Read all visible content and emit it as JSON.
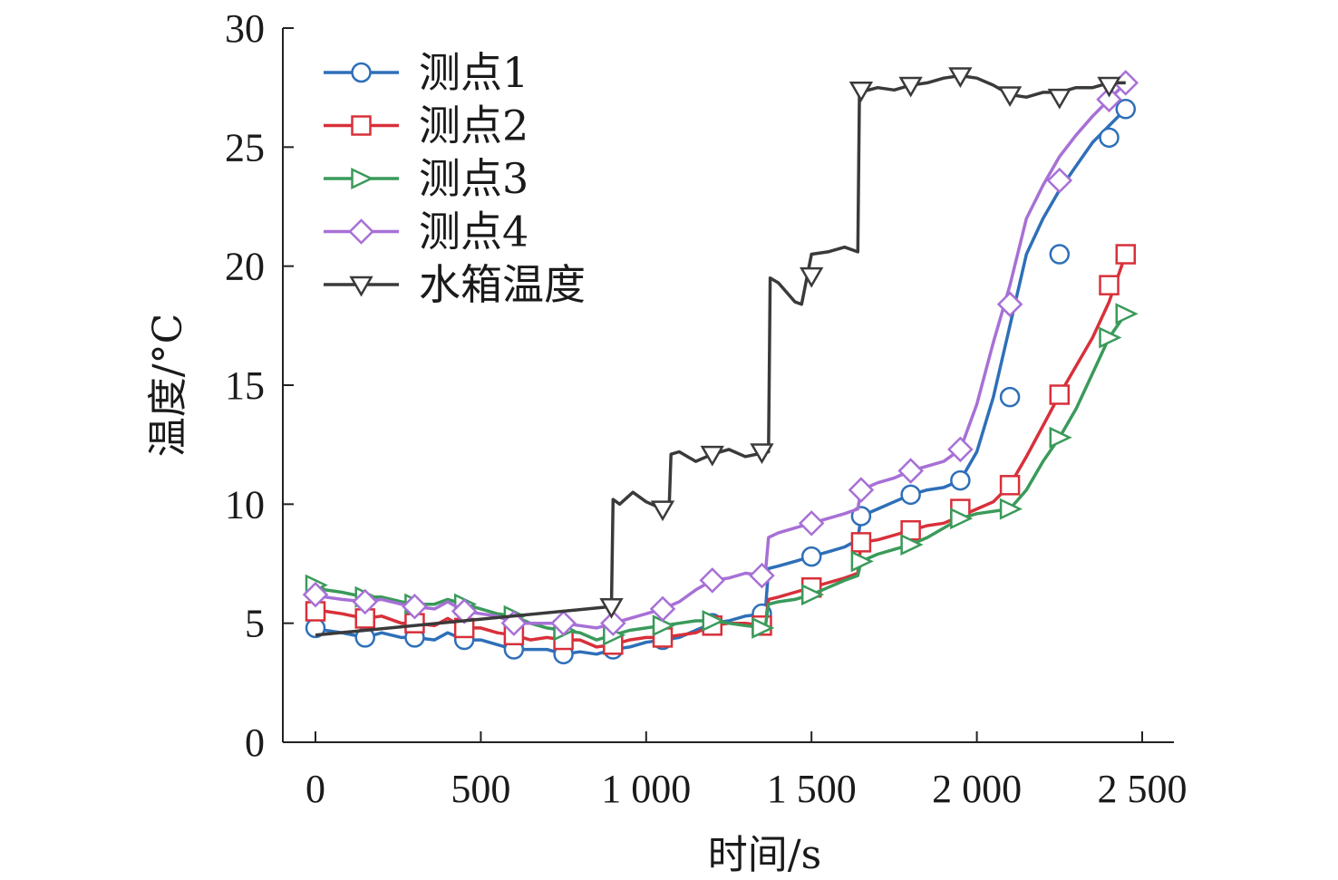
{
  "chart_data": {
    "type": "line",
    "title": "",
    "xlabel": "时间/s",
    "ylabel": "温度/°C",
    "xlim": [
      -100,
      2600
    ],
    "ylim": [
      0,
      30
    ],
    "xticks": [
      0,
      500,
      1000,
      1500,
      2000,
      2500
    ],
    "xtick_labels": [
      "0",
      "500",
      "1 000",
      "1 500",
      "2 000",
      "2 500"
    ],
    "yticks": [
      0,
      5,
      10,
      15,
      20,
      25,
      30
    ],
    "ytick_labels": [
      "0",
      "5",
      "10",
      "15",
      "20",
      "25",
      "30"
    ],
    "legend_position": "top-left",
    "series": [
      {
        "name": "测点1",
        "color": "#2e6fb8",
        "marker": "circle",
        "x": [
          0,
          30,
          80,
          150,
          200,
          260,
          300,
          360,
          400,
          450,
          500,
          550,
          600,
          650,
          700,
          750,
          800,
          850,
          900,
          950,
          1000,
          1050,
          1100,
          1150,
          1200,
          1250,
          1300,
          1360,
          1370,
          1400,
          1450,
          1500,
          1550,
          1600,
          1640,
          1650,
          1700,
          1750,
          1800,
          1850,
          1900,
          1950,
          2000,
          2050,
          2100,
          2150,
          2200,
          2250,
          2300,
          2350,
          2400,
          2450
        ],
        "y": [
          4.8,
          4.7,
          4.6,
          4.4,
          4.6,
          4.4,
          4.4,
          4.3,
          4.6,
          4.3,
          4.3,
          4.1,
          3.9,
          3.9,
          3.9,
          3.7,
          3.8,
          3.7,
          3.9,
          4.0,
          4.2,
          4.3,
          4.4,
          4.7,
          5.0,
          5.1,
          5.3,
          5.4,
          7.3,
          7.4,
          7.6,
          7.8,
          8.0,
          8.2,
          8.5,
          9.5,
          9.8,
          10.1,
          10.4,
          10.6,
          10.7,
          11.0,
          12.2,
          14.5,
          17.5,
          20.5,
          22.0,
          23.2,
          24.2,
          25.2,
          25.9,
          26.6
        ],
        "marker_x": [
          0,
          150,
          300,
          450,
          600,
          750,
          900,
          1050,
          1200,
          1350,
          1500,
          1650,
          1800,
          1950,
          2100,
          2250,
          2400,
          2450
        ],
        "marker_y": [
          4.8,
          4.4,
          4.4,
          4.3,
          3.9,
          3.7,
          3.9,
          4.3,
          5.0,
          5.4,
          7.8,
          9.5,
          10.4,
          11.0,
          14.5,
          20.5,
          25.4,
          26.6
        ]
      },
      {
        "name": "测点2",
        "color": "#d8303a",
        "marker": "square",
        "x": [
          0,
          30,
          80,
          150,
          200,
          260,
          300,
          360,
          400,
          450,
          500,
          550,
          600,
          650,
          700,
          750,
          800,
          850,
          900,
          950,
          1000,
          1050,
          1100,
          1150,
          1200,
          1250,
          1300,
          1360,
          1370,
          1400,
          1450,
          1500,
          1550,
          1600,
          1640,
          1650,
          1700,
          1750,
          1800,
          1850,
          1900,
          1950,
          2000,
          2050,
          2100,
          2150,
          2200,
          2250,
          2300,
          2350,
          2400,
          2450
        ],
        "y": [
          5.5,
          5.5,
          5.4,
          5.2,
          5.3,
          5.0,
          5.0,
          4.9,
          5.2,
          4.8,
          4.8,
          4.6,
          4.5,
          4.3,
          4.4,
          4.3,
          4.3,
          4.0,
          4.1,
          4.3,
          4.4,
          4.4,
          4.5,
          4.6,
          4.9,
          5.0,
          5.0,
          4.9,
          6.0,
          6.1,
          6.3,
          6.5,
          6.7,
          6.9,
          7.1,
          8.4,
          8.5,
          8.7,
          8.9,
          9.1,
          9.2,
          9.5,
          9.8,
          10.1,
          10.8,
          12.0,
          13.3,
          14.6,
          15.8,
          17.0,
          18.5,
          20.5
        ],
        "marker_x": [
          0,
          150,
          300,
          450,
          600,
          750,
          900,
          1050,
          1200,
          1350,
          1500,
          1650,
          1800,
          1950,
          2100,
          2250,
          2400,
          2450
        ],
        "marker_y": [
          5.5,
          5.2,
          5.0,
          4.8,
          4.5,
          4.3,
          4.1,
          4.4,
          4.9,
          4.9,
          6.5,
          8.4,
          8.9,
          9.8,
          10.8,
          14.6,
          19.2,
          20.5
        ]
      },
      {
        "name": "测点3",
        "color": "#3a9a5a",
        "marker": "triangle-right",
        "x": [
          0,
          30,
          80,
          150,
          200,
          260,
          300,
          360,
          400,
          450,
          500,
          550,
          600,
          650,
          700,
          750,
          800,
          850,
          900,
          950,
          1000,
          1050,
          1100,
          1150,
          1200,
          1250,
          1300,
          1360,
          1370,
          1400,
          1450,
          1500,
          1550,
          1600,
          1640,
          1650,
          1700,
          1750,
          1800,
          1850,
          1900,
          1950,
          2000,
          2050,
          2100,
          2150,
          2200,
          2250,
          2300,
          2350,
          2400,
          2450
        ],
        "y": [
          6.6,
          6.4,
          6.3,
          6.1,
          6.1,
          5.9,
          5.8,
          5.8,
          6.0,
          5.8,
          5.6,
          5.4,
          5.3,
          5.0,
          4.8,
          4.7,
          4.6,
          4.3,
          4.5,
          4.7,
          4.8,
          4.9,
          5.0,
          5.1,
          5.1,
          5.0,
          4.9,
          4.8,
          5.8,
          5.9,
          6.0,
          6.2,
          6.5,
          6.8,
          7.0,
          7.6,
          7.9,
          8.1,
          8.3,
          8.6,
          9.0,
          9.4,
          9.6,
          9.7,
          9.8,
          10.6,
          11.8,
          12.8,
          14.0,
          15.5,
          17.0,
          18.0
        ],
        "marker_x": [
          0,
          150,
          300,
          450,
          600,
          750,
          900,
          1050,
          1200,
          1350,
          1500,
          1650,
          1800,
          1950,
          2100,
          2250,
          2400,
          2450
        ],
        "marker_y": [
          6.6,
          6.1,
          5.8,
          5.8,
          5.3,
          4.7,
          4.5,
          4.9,
          5.1,
          4.8,
          6.2,
          7.6,
          8.3,
          9.4,
          9.8,
          12.8,
          17.0,
          18.0
        ]
      },
      {
        "name": "测点4",
        "color": "#a770d6",
        "marker": "diamond",
        "x": [
          0,
          30,
          80,
          150,
          200,
          260,
          300,
          360,
          400,
          450,
          500,
          550,
          600,
          650,
          700,
          750,
          800,
          850,
          900,
          950,
          1000,
          1050,
          1100,
          1150,
          1200,
          1250,
          1300,
          1360,
          1370,
          1400,
          1450,
          1500,
          1550,
          1600,
          1640,
          1650,
          1700,
          1750,
          1800,
          1850,
          1900,
          1950,
          2000,
          2050,
          2100,
          2150,
          2200,
          2250,
          2300,
          2350,
          2400,
          2450
        ],
        "y": [
          6.2,
          6.1,
          6.0,
          5.9,
          6.0,
          5.8,
          5.7,
          5.6,
          5.9,
          5.5,
          5.4,
          5.3,
          5.0,
          5.0,
          5.0,
          5.0,
          4.9,
          4.8,
          5.0,
          5.2,
          5.4,
          5.6,
          5.9,
          6.4,
          6.8,
          6.9,
          7.1,
          7.0,
          8.6,
          8.8,
          9.0,
          9.2,
          9.4,
          9.6,
          9.8,
          10.6,
          10.9,
          11.1,
          11.4,
          11.6,
          11.8,
          12.3,
          14.2,
          16.8,
          19.2,
          22.0,
          23.4,
          24.6,
          25.5,
          26.3,
          27.0,
          27.7
        ],
        "marker_x": [
          0,
          150,
          300,
          450,
          600,
          750,
          900,
          1050,
          1200,
          1350,
          1500,
          1650,
          1800,
          1950,
          2100,
          2250,
          2400,
          2450
        ],
        "marker_y": [
          6.2,
          5.9,
          5.7,
          5.5,
          5.0,
          5.0,
          5.0,
          5.6,
          6.8,
          7.0,
          9.2,
          10.6,
          11.4,
          12.3,
          18.4,
          23.6,
          27.0,
          27.7
        ]
      },
      {
        "name": "水箱温度",
        "color": "#3a3a3a",
        "marker": "triangle-down",
        "x": [
          0,
          895,
          900,
          920,
          960,
          1000,
          1050,
          1070,
          1075,
          1100,
          1150,
          1200,
          1250,
          1300,
          1370,
          1375,
          1400,
          1450,
          1470,
          1500,
          1550,
          1600,
          1640,
          1645,
          1700,
          1750,
          1800,
          1850,
          1900,
          1950,
          2000,
          2050,
          2100,
          2150,
          2200,
          2250,
          2300,
          2350,
          2400,
          2450
        ],
        "y": [
          4.5,
          5.7,
          10.2,
          10.0,
          10.5,
          10.1,
          9.8,
          10.0,
          12.1,
          12.2,
          11.8,
          12.1,
          12.3,
          12.0,
          12.2,
          19.5,
          19.3,
          18.5,
          18.4,
          20.5,
          20.6,
          20.8,
          20.6,
          27.3,
          27.5,
          27.4,
          27.6,
          27.7,
          27.9,
          28.0,
          27.9,
          27.6,
          27.2,
          27.1,
          27.3,
          27.3,
          27.5,
          27.5,
          27.7,
          27.7
        ],
        "marker_x": [
          895,
          1050,
          1200,
          1350,
          1500,
          1650,
          1800,
          1950,
          2100,
          2250,
          2400
        ],
        "marker_y": [
          5.7,
          9.8,
          12.1,
          12.2,
          19.6,
          27.4,
          27.6,
          28.0,
          27.2,
          27.1,
          27.6
        ]
      }
    ]
  }
}
